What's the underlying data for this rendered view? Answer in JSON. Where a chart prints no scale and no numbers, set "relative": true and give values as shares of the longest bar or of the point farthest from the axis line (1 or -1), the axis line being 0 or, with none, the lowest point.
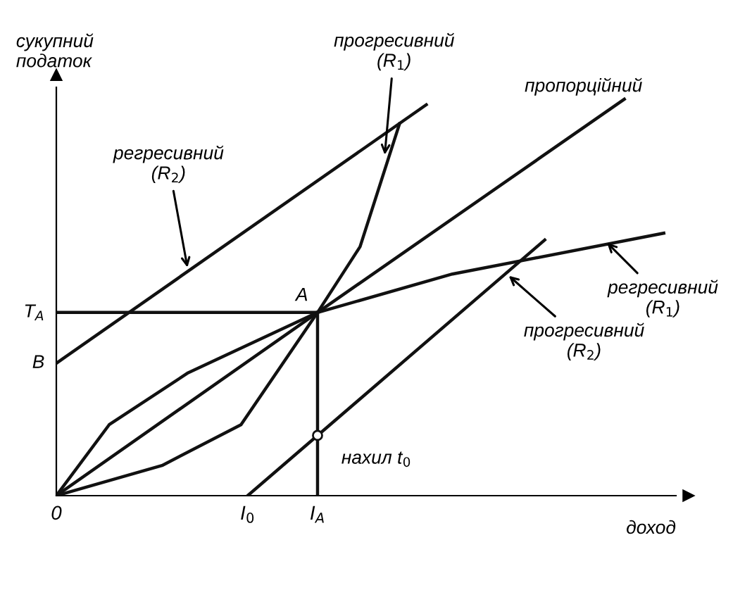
{
  "chart_data": {
    "type": "line",
    "relative": true,
    "xlabel": "доход",
    "ylabel": "сукупний\nподаток",
    "xlim": [
      0,
      1.02
    ],
    "xticks": [
      {
        "value": 0,
        "label": "0"
      },
      {
        "value": 0.315,
        "label": "I$_{0}$"
      },
      {
        "value": 0.43,
        "label": "I$_{A}$"
      }
    ],
    "series": [
      {
        "color": "#111111",
        "x": [
          0,
          0.43,
          0.935
        ],
        "values": [
          0,
          0.462,
          1.0
        ]
      },
      {
        "color": "#111111",
        "x": [
          0,
          0.174,
          0.304,
          0.43,
          0.5,
          0.565
        ],
        "values": [
          0,
          0.076,
          0.179,
          0.462,
          0.628,
          0.938
        ]
      },
      {
        "color": "#111111",
        "x": [
          0,
          0.087,
          0.217,
          0.43,
          0.652,
          1.0
        ],
        "values": [
          0,
          0.179,
          0.31,
          0.462,
          0.559,
          0.662
        ]
      },
      {
        "color": "#111111",
        "x": [
          0,
          0.609
        ],
        "values": [
          0.334,
          0.986
        ]
      },
      {
        "color": "#111111",
        "x": [
          0.315,
          0.804
        ],
        "values": [
          0,
          0.645
        ]
      },
      {
        "color": "#111111",
        "x": [
          0,
          0.43
        ],
        "values": [
          0.462,
          0.462
        ]
      },
      {
        "color": "#111111",
        "x": [
          0.43,
          0.43
        ],
        "values": [
          0.462,
          0
        ]
      },
      {
        "type": "scatter",
        "color": "#111111",
        "x": [
          0.43
        ],
        "values": [
          0.152
        ]
      }
    ],
    "annotations": [
      {
        "text": "A",
        "x": 0.43,
        "y": 0.462
      },
      {
        "text": "B",
        "x": 0,
        "y": 0.334
      },
      {
        "text": "T$_{A}$",
        "x": 0,
        "y": 0.462
      },
      "нахил t$_{0}$",
      {
        "text": "регресивний\n(R$_{2}$)",
        "x": 0.217,
        "y": 0.566
      },
      {
        "text": "прогресивний\n(R$_{1}$)",
        "x": 0.54,
        "y": 0.85
      },
      {
        "text": "пропорційний",
        "x": 0.9,
        "y": 0.96
      },
      {
        "text": "регресивний\n(R$_{1}$)",
        "x": 0.902,
        "y": 0.645
      },
      {
        "text": "прогресивний\n(R$_{2}$)",
        "x": 0.74,
        "y": 0.561
      }
    ]
  }
}
